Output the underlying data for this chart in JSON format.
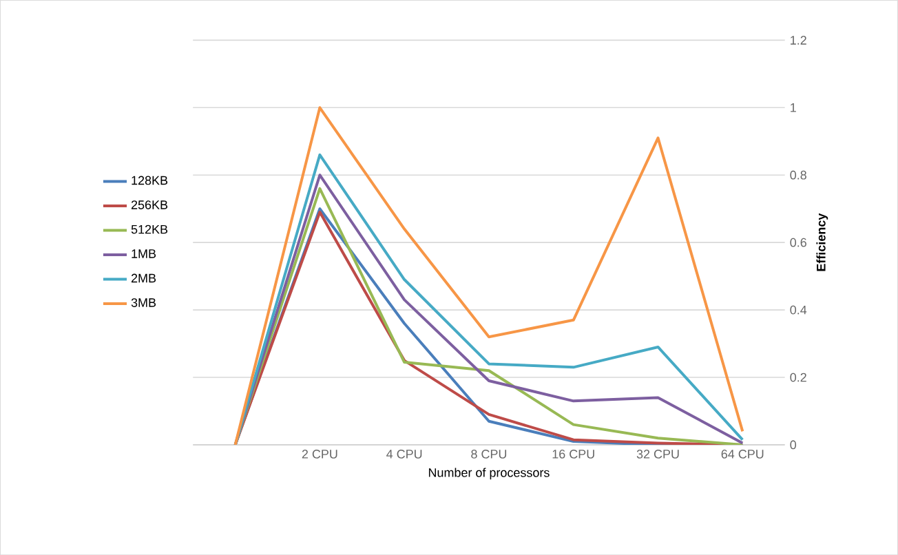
{
  "chart_data": {
    "type": "line",
    "xlabel": "Number of processors",
    "ylabel": "Efficiency",
    "categories": [
      null,
      "2 CPU",
      "4 CPU",
      "8 CPU",
      "16 CPU",
      "32 CPU",
      "64 CPU"
    ],
    "series": [
      {
        "name": "128KB",
        "color": "#4a7ebb",
        "values": [
          0,
          0.7,
          0.36,
          0.07,
          0.01,
          0,
          0
        ]
      },
      {
        "name": "256KB",
        "color": "#be4b48",
        "values": [
          0,
          0.69,
          0.25,
          0.09,
          0.015,
          0.005,
          0
        ]
      },
      {
        "name": "512KB",
        "color": "#98b954",
        "values": [
          0,
          0.76,
          0.245,
          0.22,
          0.06,
          0.02,
          0
        ]
      },
      {
        "name": "1MB",
        "color": "#7d5fa0",
        "values": [
          0,
          0.8,
          0.43,
          0.19,
          0.13,
          0.14,
          0.005
        ]
      },
      {
        "name": "2MB",
        "color": "#46aac5",
        "values": [
          0,
          0.86,
          0.49,
          0.24,
          0.23,
          0.29,
          0.015
        ]
      },
      {
        "name": "3MB",
        "color": "#f79646",
        "values": [
          0,
          1.0,
          0.64,
          0.32,
          0.37,
          0.91,
          0.04
        ]
      }
    ],
    "ylim": [
      0,
      1.2
    ],
    "yticks": [
      0,
      0.2,
      0.4,
      0.6,
      0.8,
      1,
      1.2
    ],
    "grid": "y",
    "legend": "left",
    "marker": "none",
    "line_style": "solid"
  }
}
